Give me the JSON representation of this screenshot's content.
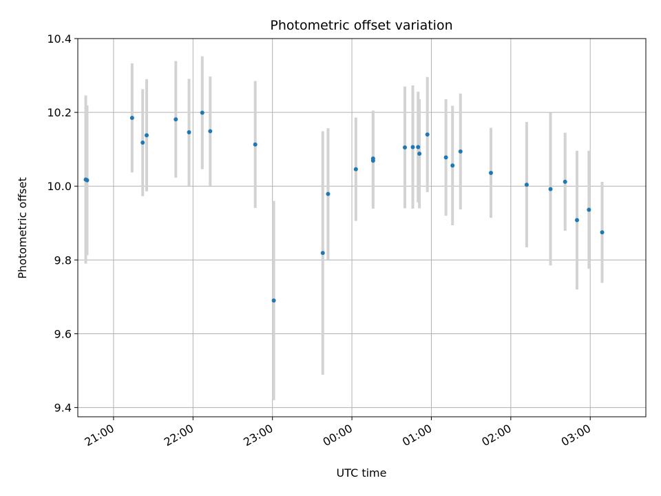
{
  "chart_data": {
    "type": "scatter",
    "title": "Photometric offset variation",
    "xlabel": "UTC time",
    "ylabel": "Photometric offset",
    "x_unit": "UTC time (HH:MM, overnight)",
    "xlim": [
      "20:33",
      "03:42"
    ],
    "ylim": [
      9.375,
      10.4
    ],
    "y_ticks": [
      9.4,
      9.6,
      9.8,
      10.0,
      10.2,
      10.4
    ],
    "x_ticks": [
      "21:00",
      "22:00",
      "23:00",
      "00:00",
      "01:00",
      "02:00",
      "03:00"
    ],
    "grid": true,
    "marker_color": "#1f77b4",
    "errorbar_color": "#d3d3d3",
    "points": [
      {
        "x": "20:39",
        "y": 10.018,
        "err": 0.228
      },
      {
        "x": "20:40",
        "y": 10.016,
        "err": 0.203
      },
      {
        "x": "21:14",
        "y": 10.185,
        "err": 0.148
      },
      {
        "x": "21:22",
        "y": 10.118,
        "err": 0.145
      },
      {
        "x": "21:25",
        "y": 10.138,
        "err": 0.152
      },
      {
        "x": "21:47",
        "y": 10.181,
        "err": 0.158
      },
      {
        "x": "21:57",
        "y": 10.146,
        "err": 0.145
      },
      {
        "x": "22:07",
        "y": 10.199,
        "err": 0.153
      },
      {
        "x": "22:13",
        "y": 10.149,
        "err": 0.148
      },
      {
        "x": "22:47",
        "y": 10.113,
        "err": 0.172
      },
      {
        "x": "23:01",
        "y": 9.69,
        "err": 0.27
      },
      {
        "x": "23:38",
        "y": 9.819,
        "err": 0.33
      },
      {
        "x": "23:42",
        "y": 9.979,
        "err": 0.178
      },
      {
        "x": "00:03",
        "y": 10.046,
        "err": 0.14
      },
      {
        "x": "00:16",
        "y": 10.069,
        "err": 0.13
      },
      {
        "x": "00:16",
        "y": 10.075,
        "err": 0.13
      },
      {
        "x": "00:40",
        "y": 10.105,
        "err": 0.165
      },
      {
        "x": "00:46",
        "y": 10.106,
        "err": 0.167
      },
      {
        "x": "00:50",
        "y": 10.106,
        "err": 0.15
      },
      {
        "x": "00:51",
        "y": 10.088,
        "err": 0.148
      },
      {
        "x": "00:57",
        "y": 10.14,
        "err": 0.156
      },
      {
        "x": "01:11",
        "y": 10.078,
        "err": 0.158
      },
      {
        "x": "01:16",
        "y": 10.056,
        "err": 0.162
      },
      {
        "x": "01:22",
        "y": 10.094,
        "err": 0.157
      },
      {
        "x": "01:45",
        "y": 10.036,
        "err": 0.122
      },
      {
        "x": "02:12",
        "y": 10.004,
        "err": 0.17
      },
      {
        "x": "02:30",
        "y": 9.992,
        "err": 0.207
      },
      {
        "x": "02:41",
        "y": 10.012,
        "err": 0.133
      },
      {
        "x": "02:50",
        "y": 9.908,
        "err": 0.188
      },
      {
        "x": "02:59",
        "y": 9.936,
        "err": 0.16
      },
      {
        "x": "03:09",
        "y": 9.875,
        "err": 0.137
      }
    ]
  }
}
